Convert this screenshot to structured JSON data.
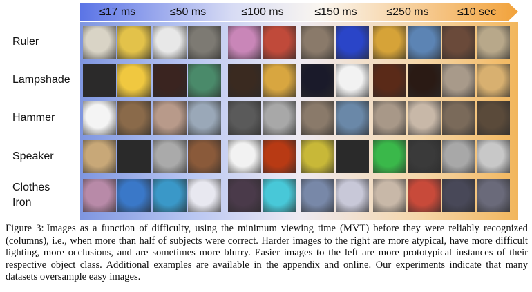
{
  "columns": [
    "≤17 ms",
    "≤50 ms",
    "≤100 ms",
    "≤150 ms",
    "≤250 ms",
    "≤10 sec"
  ],
  "rows": [
    {
      "label_lines": [
        "Ruler"
      ],
      "thumbs": [
        [
          "#d9d4c6",
          "#e3c24a"
        ],
        [
          "#e8e8e8",
          "#7d7a73"
        ],
        [
          "#c986b8",
          "#c04a3a"
        ],
        [
          "#8a7a6a",
          "#2a45c8"
        ],
        [
          "#d6a338",
          "#5c84b4"
        ],
        [
          "#6a4a3a",
          "#b8a88a"
        ]
      ]
    },
    {
      "label_lines": [
        "Lampshade"
      ],
      "thumbs": [
        [
          "#2b2a2a",
          "#f0c840"
        ],
        [
          "#3a2420",
          "#4a8a6a"
        ],
        [
          "#3a2a20",
          "#d8a640"
        ],
        [
          "#1a1a2a",
          "#f2f2f2"
        ],
        [
          "#5a2a18",
          "#2a1a14"
        ],
        [
          "#a89a8a",
          "#d8b070"
        ]
      ]
    },
    {
      "label_lines": [
        "Hammer"
      ],
      "thumbs": [
        [
          "#f4f4f4",
          "#8a6a4a"
        ],
        [
          "#b89a8a",
          "#9aa8b8"
        ],
        [
          "#5a5a5a",
          "#a8a8a8"
        ],
        [
          "#8a7a6a",
          "#6a88a8"
        ],
        [
          "#a89888",
          "#c8b8a8"
        ],
        [
          "#7a6a5a",
          "#5a4a3a"
        ]
      ]
    },
    {
      "label_lines": [
        "Speaker"
      ],
      "thumbs": [
        [
          "#c8a878",
          "#2a2a2a"
        ],
        [
          "#aaaaaa",
          "#8a5a3a"
        ],
        [
          "#f2f2f2",
          "#b83a14"
        ],
        [
          "#c8b838",
          "#2a2a2a"
        ],
        [
          "#3ab84a",
          "#3a3a3a"
        ],
        [
          "#a8a8a8",
          "#c8c8c8"
        ]
      ]
    },
    {
      "label_lines": [
        "Clothes",
        "Iron"
      ],
      "thumbs": [
        [
          "#b88aa8",
          "#3a78c8"
        ],
        [
          "#3a98c8",
          "#e8e8f0"
        ],
        [
          "#4a3a4a",
          "#48c8d8"
        ],
        [
          "#7888a8",
          "#c8c8d8"
        ],
        [
          "#c8b8a8",
          "#c84a3a"
        ],
        [
          "#484858",
          "#6a6a7a"
        ]
      ]
    }
  ],
  "caption": {
    "label": "Figure 3:",
    "text": "Images as a function of difficulty, using the minimum viewing time (MVT) before they were reliably recognized (columns), i.e., when more than half of subjects were correct. Harder images to the right are more atypical, have more difficult lighting, more occlusions, and are sometimes more blurry. Easier images to the left are more prototypical instances of their respective object class. Additional examples are available in the appendix and online. Our experiments indicate that many datasets oversample easy images."
  },
  "colors": {
    "arrow_start": "#5b74e6",
    "arrow_end": "#f2a23a"
  }
}
